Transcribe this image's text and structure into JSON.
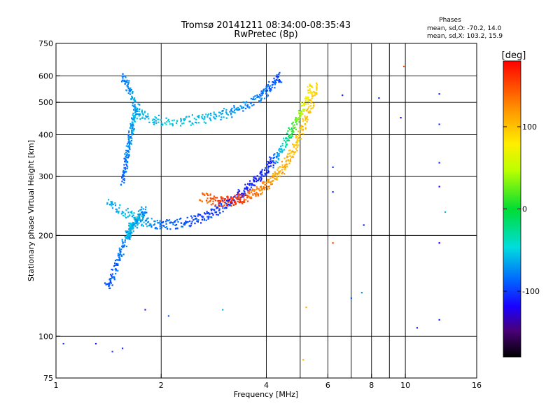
{
  "chart_data": {
    "type": "scatter",
    "title": "Tromsø 20141211 08:34:00-08:35:43",
    "subtitle": "RwPretec (8p)",
    "xlabel": "Frequency [MHz]",
    "ylabel": "Stationary phase Virtual Height [km]",
    "x_scale": "log",
    "y_scale": "log",
    "xlim": [
      1,
      16
    ],
    "ylim": [
      75,
      750
    ],
    "x_ticks": [
      1,
      2,
      4,
      6,
      8,
      10,
      16
    ],
    "x_tick_labels": [
      "1",
      "2",
      "4",
      "6",
      "8",
      "10",
      "16"
    ],
    "x_gridlines": [
      2,
      4,
      6,
      8,
      10
    ],
    "x_minor_gridlines": [
      5,
      7,
      9
    ],
    "y_ticks": [
      75,
      100,
      200,
      300,
      400,
      500,
      600,
      750
    ],
    "y_tick_labels": [
      "75",
      "100",
      "200",
      "300",
      "400",
      "500",
      "600",
      "750"
    ],
    "y_gridlines": [
      100,
      200,
      300,
      400,
      500,
      600
    ],
    "grid": true,
    "phase_box": {
      "title": "Phases",
      "line_o": "mean, sd,O: -70.2, 14.0",
      "line_x": "mean, sd,X: 103.2, 15.9"
    },
    "colorbar": {
      "label": "[deg]",
      "range": [
        -180,
        180
      ],
      "ticks": [
        100,
        0,
        -100
      ],
      "tick_labels": [
        "100",
        "0",
        "-100"
      ]
    },
    "series": [
      {
        "name": "",
        "trace_segments": [
          {
            "f": [
              1.4,
              1.45,
              1.5,
              1.55,
              1.6,
              1.62,
              1.64,
              1.66,
              1.7,
              1.75,
              1.8
            ],
            "h": [
              140,
              150,
              165,
              185,
              200,
              205,
              210,
              215,
              220,
              230,
              240
            ],
            "phase": [
              -95,
              -90,
              -85,
              -80,
              -70,
              -60,
              -55,
              -60,
              -65,
              -70,
              -75
            ]
          },
          {
            "f": [
              1.4,
              1.55,
              1.7,
              1.85,
              2.0,
              2.2,
              2.4,
              2.6,
              2.8,
              3.0,
              3.2,
              3.4,
              3.6,
              3.8,
              4.0,
              4.2
            ],
            "h": [
              250,
              238,
              225,
              218,
              215,
              216,
              220,
              226,
              234,
              244,
              256,
              268,
              282,
              298,
              318,
              340
            ],
            "phase": [
              -70,
              -60,
              -55,
              -70,
              -85,
              -90,
              -95,
              -100,
              -100,
              -105,
              -105,
              -108,
              -110,
              -110,
              -108,
              -105
            ]
          },
          {
            "f": [
              1.55,
              1.6,
              1.65,
              1.7,
              1.8,
              2.0,
              2.3,
              2.6,
              2.9,
              3.2,
              3.5,
              3.8,
              4.0,
              4.2,
              4.4
            ],
            "h": [
              600,
              560,
              520,
              480,
              450,
              440,
              440,
              445,
              455,
              470,
              490,
              515,
              540,
              570,
              600
            ],
            "phase": [
              -80,
              -75,
              -70,
              -65,
              -60,
              -55,
              -55,
              -60,
              -65,
              -70,
              -75,
              -80,
              -85,
              -90,
              -95
            ]
          },
          {
            "f": [
              1.55,
              1.58,
              1.6,
              1.62,
              1.64,
              1.66,
              1.7
            ],
            "h": [
              290,
              320,
              350,
              380,
              410,
              440,
              470
            ],
            "phase": [
              -90,
              -85,
              -80,
              -75,
              -70,
              -65,
              -60
            ]
          },
          {
            "f": [
              2.6,
              2.8,
              3.0,
              3.2,
              3.4,
              3.6,
              3.8,
              4.0,
              4.2,
              4.4,
              4.6,
              4.8,
              5.0,
              5.2,
              5.4,
              5.6
            ],
            "h": [
              262,
              255,
              252,
              254,
              258,
              264,
              272,
              282,
              295,
              312,
              335,
              365,
              400,
              445,
              500,
              570
            ],
            "phase": [
              130,
              150,
              165,
              160,
              155,
              140,
              130,
              125,
              115,
              110,
              105,
              100,
              100,
              95,
              95,
              90
            ]
          },
          {
            "f": [
              4.2,
              4.4,
              4.6,
              4.8,
              5.0,
              5.2,
              5.4
            ],
            "h": [
              330,
              360,
              390,
              425,
              465,
              510,
              560
            ],
            "phase": [
              -80,
              -60,
              -20,
              10,
              40,
              70,
              90
            ]
          }
        ],
        "isolated_points": [
          {
            "f": 1.05,
            "h": 95,
            "phase": -100
          },
          {
            "f": 1.3,
            "h": 95,
            "phase": -110
          },
          {
            "f": 1.45,
            "h": 90,
            "phase": -100
          },
          {
            "f": 1.55,
            "h": 92,
            "phase": -110
          },
          {
            "f": 1.8,
            "h": 120,
            "phase": -110
          },
          {
            "f": 2.1,
            "h": 115,
            "phase": -90
          },
          {
            "f": 3.0,
            "h": 120,
            "phase": -60
          },
          {
            "f": 5.1,
            "h": 85,
            "phase": 100
          },
          {
            "f": 5.2,
            "h": 122,
            "phase": 110
          },
          {
            "f": 6.2,
            "h": 320,
            "phase": -100
          },
          {
            "f": 6.2,
            "h": 270,
            "phase": -110
          },
          {
            "f": 6.2,
            "h": 190,
            "phase": 150
          },
          {
            "f": 6.6,
            "h": 525,
            "phase": -110
          },
          {
            "f": 7.0,
            "h": 130,
            "phase": -90
          },
          {
            "f": 7.5,
            "h": 135,
            "phase": -70
          },
          {
            "f": 7.6,
            "h": 215,
            "phase": -110
          },
          {
            "f": 8.4,
            "h": 515,
            "phase": -110
          },
          {
            "f": 9.7,
            "h": 450,
            "phase": -115
          },
          {
            "f": 9.9,
            "h": 640,
            "phase": 150
          },
          {
            "f": 10.8,
            "h": 106,
            "phase": -110
          },
          {
            "f": 12.5,
            "h": 530,
            "phase": -110
          },
          {
            "f": 12.5,
            "h": 430,
            "phase": -110
          },
          {
            "f": 12.5,
            "h": 330,
            "phase": -110
          },
          {
            "f": 12.5,
            "h": 280,
            "phase": -115
          },
          {
            "f": 12.5,
            "h": 190,
            "phase": -115
          },
          {
            "f": 12.5,
            "h": 112,
            "phase": -110
          },
          {
            "f": 13.0,
            "h": 235,
            "phase": -60
          }
        ]
      }
    ]
  }
}
